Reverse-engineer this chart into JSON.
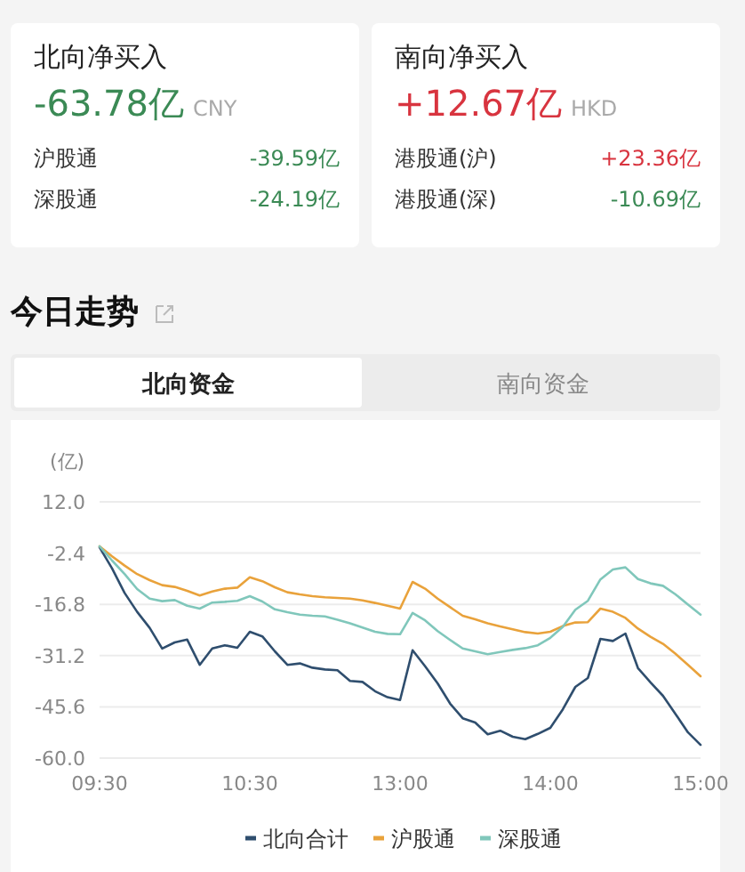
{
  "chart_data": [
    {
      "type": "other",
      "title": "北向净买入",
      "annotations": [
        "-63.78亿",
        "CNY",
        "沪股通",
        "-39.59亿",
        "深股通",
        "-24.19亿"
      ],
      "colors": [
        "#3b8a55",
        "#aaaaaa",
        "#333333",
        "#3b8a55",
        "#333333",
        "#3b8a55"
      ]
    },
    {
      "type": "other",
      "title": "南向净买入",
      "annotations": [
        "+12.67亿",
        "HKD",
        "港股通(沪)",
        "+23.36亿",
        "港股通(深)",
        "-10.69亿"
      ],
      "colors": [
        "#d8343f",
        "#aaaaaa",
        "#333333",
        "#d8343f",
        "#333333",
        "#3b8a55"
      ]
    },
    {
      "type": "line",
      "title": "今日走势",
      "ylabel": "(亿)",
      "annotations": [
        "北向资金",
        "南向资金"
      ],
      "categories": [
        "09:30",
        null,
        null,
        null,
        null,
        null,
        null,
        null,
        null,
        null,
        null,
        null,
        "10:30",
        null,
        null,
        null,
        null,
        null,
        null,
        null,
        null,
        null,
        null,
        null,
        "13:00",
        null,
        null,
        null,
        null,
        null,
        null,
        null,
        null,
        null,
        null,
        null,
        "14:00",
        null,
        null,
        null,
        null,
        null,
        null,
        null,
        null,
        null,
        null,
        null,
        "15:00"
      ],
      "ylim": [
        -60,
        12
      ],
      "yticks": [
        {
          "value": 12,
          "label": "12.0"
        },
        -2.4,
        -16.8,
        -31.2,
        -45.6,
        {
          "value": -60,
          "label": "-60.0"
        }
      ],
      "grid": "y",
      "legend": "bottom",
      "series": [
        {
          "name": "北向合计",
          "color": "#2f4e6e",
          "values": [
            -0.8,
            -6.7,
            -13.6,
            -18.9,
            -23.4,
            -29.2,
            -27.5,
            -26.7,
            -33.8,
            -29.2,
            -28.3,
            -29,
            -24.5,
            -25.8,
            -30,
            -33.8,
            -33.4,
            -34.6,
            -35.1,
            -35.3,
            -38.3,
            -38.6,
            -41.2,
            -42.9,
            -43.7,
            -29.7,
            -34.2,
            -39,
            -44.7,
            -48.8,
            -50,
            -53.3,
            -52.3,
            -54,
            -54.7,
            -53.2,
            -51.5,
            -46.3,
            -40,
            -37.5,
            -26.5,
            -27.1,
            -25,
            -34.7,
            -38.7,
            -42.5,
            -47.6,
            -52.8,
            -56.3
          ]
        },
        {
          "name": "沪股通",
          "color": "#e9a23b",
          "values": [
            -0.5,
            -3.3,
            -5.9,
            -8.3,
            -10,
            -11.4,
            -11.9,
            -13,
            -14.3,
            -13.2,
            -12.4,
            -12.1,
            -9.2,
            -10.3,
            -12,
            -13.4,
            -14,
            -14.5,
            -14.8,
            -15,
            -15.2,
            -15.7,
            -16.4,
            -17.2,
            -18,
            -10.5,
            -12.4,
            -15.2,
            -17.6,
            -20,
            -21,
            -22.1,
            -23,
            -23.8,
            -24.6,
            -25,
            -24.5,
            -22.9,
            -21.9,
            -21.8,
            -18,
            -18.9,
            -20.6,
            -23.6,
            -25.9,
            -27.9,
            -30.7,
            -33.8,
            -37
          ]
        },
        {
          "name": "深股通",
          "color": "#80c7bb",
          "values": [
            -0.5,
            -4.5,
            -8.3,
            -12.5,
            -15.2,
            -15.9,
            -15.6,
            -17.2,
            -18,
            -16.3,
            -16.1,
            -15.8,
            -14.5,
            -16,
            -18.2,
            -19,
            -19.7,
            -20,
            -20.2,
            -21.1,
            -22.1,
            -23.3,
            -24.5,
            -25.1,
            -25.2,
            -19.2,
            -21.3,
            -24.3,
            -26.8,
            -29.2,
            -30,
            -30.8,
            -30.2,
            -29.6,
            -29.1,
            -28.3,
            -26.2,
            -23.1,
            -18.3,
            -15.8,
            -9.8,
            -7,
            -6.4,
            -9.7,
            -10.9,
            -11.6,
            -14,
            -16.9,
            -19.7
          ]
        }
      ]
    }
  ]
}
